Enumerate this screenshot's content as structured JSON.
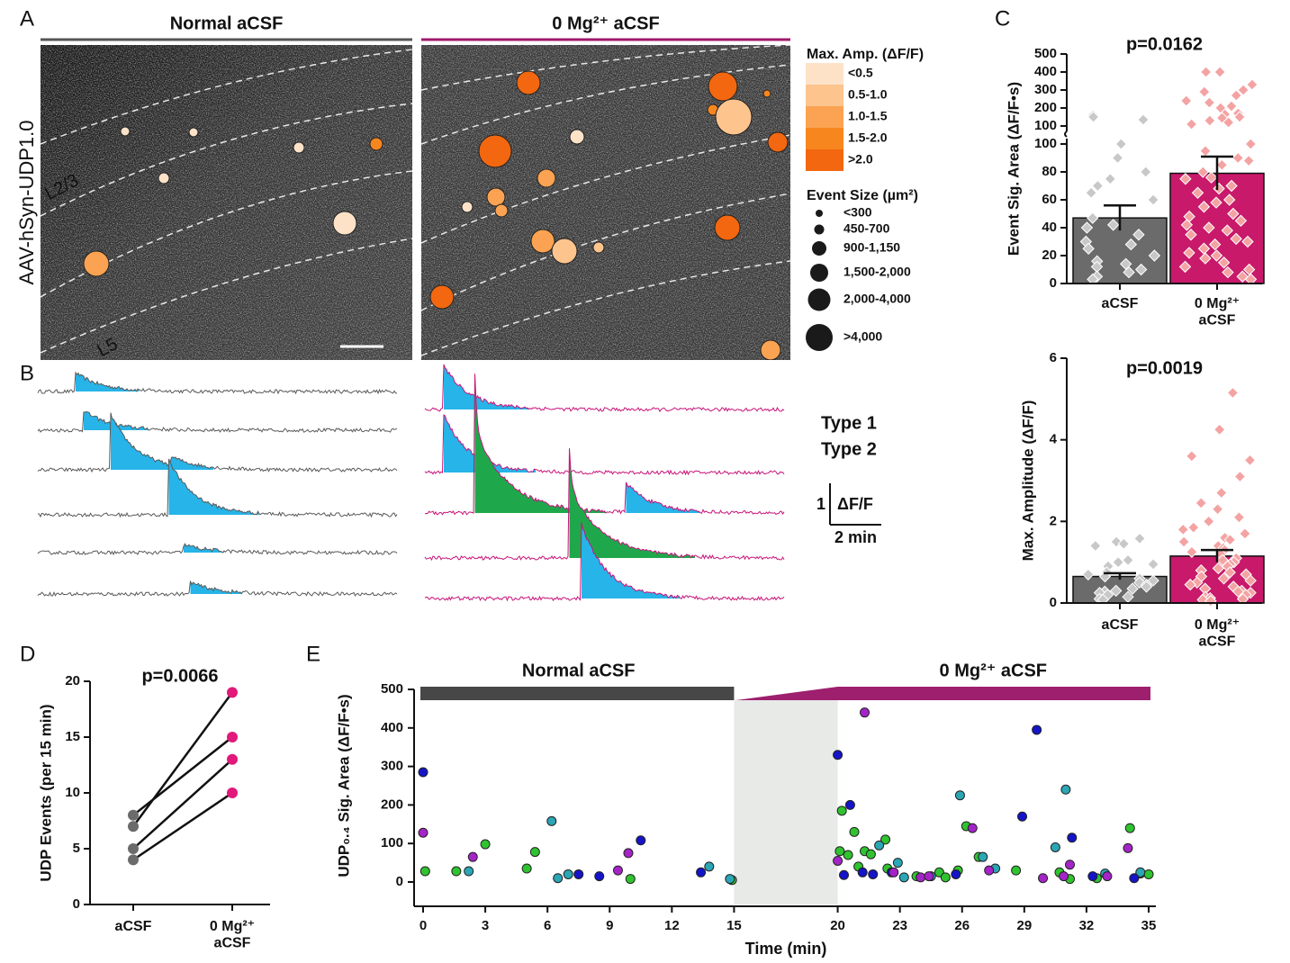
{
  "panel_labels": [
    "A",
    "B",
    "C",
    "D",
    "E"
  ],
  "panel_a": {
    "conditions": [
      {
        "label": "Normal aCSF",
        "color": "#555555"
      },
      {
        "label": "0 Mg²⁺ aCSF",
        "color": "#a0196e"
      }
    ],
    "construct": "AAV-hSyn-UDP1.0",
    "layers": [
      "L2/3",
      "L5"
    ],
    "amp_legend": {
      "title": "Max. Amp. (ΔF/F)",
      "items": [
        {
          "label": "<0.5",
          "color": "#fde2c8"
        },
        {
          "label": "0.5-1.0",
          "color": "#fdc48e"
        },
        {
          "label": "1.0-1.5",
          "color": "#fba352"
        },
        {
          "label": "1.5-2.0",
          "color": "#f8861f"
        },
        {
          "label": ">2.0",
          "color": "#f2670f"
        }
      ]
    },
    "size_legend": {
      "title": "Event Size (µm²)",
      "items": [
        "<300",
        "450-700",
        "900-1,150",
        "1,500-2,000",
        "2,000-4,000",
        ">4,000"
      ]
    }
  },
  "panel_b": {
    "types": [
      {
        "label": "Type 1",
        "color": "#1fa84b"
      },
      {
        "label": "Type 2",
        "color": "#27b4e8"
      }
    ],
    "scale_bar": {
      "y": 1,
      "y_unit": "ΔF/F",
      "x": {
        "value": 2,
        "label": "2 min"
      }
    },
    "conditions": [
      {
        "color": "#5a5a5a",
        "traces": [
          {
            "events": [
              {
                "onset": 1.44,
                "amplitude": 0.47,
                "type": 2
              }
            ]
          },
          {
            "events": [
              {
                "onset": 1.75,
                "amplitude": 0.5,
                "type": 2
              }
            ]
          },
          {
            "events": [
              {
                "onset": 2.8,
                "amplitude": 1.4,
                "type": 2
              },
              {
                "onset": 5.2,
                "amplitude": 0.2,
                "type": 2
              }
            ]
          },
          {
            "events": [
              {
                "onset": 5.1,
                "amplitude": 1.35,
                "type": 2
              }
            ]
          },
          {
            "events": [
              {
                "onset": 5.65,
                "amplitude": 0.2,
                "type": 2
              }
            ]
          },
          {
            "events": [
              {
                "onset": 5.9,
                "amplitude": 0.3,
                "type": 2
              }
            ]
          }
        ]
      },
      {
        "color": "#c8157a",
        "traces": [
          {
            "events": [
              {
                "onset": 0.7,
                "amplitude": 1.1,
                "type": 2
              }
            ]
          },
          {
            "events": [
              {
                "onset": 0.7,
                "amplitude": 1.45,
                "type": 2
              }
            ]
          },
          {
            "events": [
              {
                "onset": 1.93,
                "amplitude": 3.7,
                "type": 1
              },
              {
                "onset": 7.8,
                "amplitude": 0.75,
                "type": 2
              }
            ]
          },
          {
            "events": [
              {
                "onset": 5.6,
                "amplitude": 3.2,
                "type": 1
              }
            ]
          },
          {
            "events": [
              {
                "onset": 6.1,
                "amplitude": 1.8,
                "type": 2
              }
            ]
          }
        ]
      }
    ]
  },
  "chart_data": [
    {
      "type": "bar",
      "title": "p=0.0162",
      "ylabel": "Event Sig. Area (ΔF/F•s)",
      "categories": [
        "aCSF",
        "0 Mg²⁺ aCSF"
      ],
      "values": [
        47,
        79
      ],
      "errors": [
        9,
        12
      ],
      "colors": [
        "#6b6b6b",
        "#c8196b"
      ],
      "point_colors": [
        "#c8c8c8",
        "#f4a3a3"
      ],
      "points": [
        [
          160,
          150,
          135,
          100,
          90,
          80,
          75,
          70,
          65,
          60,
          47,
          42,
          40,
          35,
          30,
          28,
          25,
          20,
          16,
          14,
          12,
          10,
          8,
          5,
          3
        ],
        [
          400,
          400,
          330,
          300,
          290,
          270,
          240,
          230,
          210,
          200,
          170,
          165,
          150,
          145,
          130,
          120,
          110,
          100,
          95,
          90,
          88,
          85,
          80,
          76,
          75,
          70,
          68,
          65,
          60,
          58,
          55,
          50,
          48,
          45,
          42,
          40,
          38,
          35,
          32,
          30,
          28,
          25,
          22,
          20,
          18,
          15,
          12,
          10,
          8,
          5,
          3
        ]
      ],
      "ylim": [
        0,
        500
      ],
      "y_break": 100,
      "yticks": [
        0,
        20,
        40,
        60,
        80,
        100,
        200,
        300,
        400,
        500
      ]
    },
    {
      "type": "bar",
      "title": "p=0.0019",
      "ylabel": "Max. Amplitude (ΔF/F)",
      "categories": [
        "aCSF",
        "0 Mg²⁺ aCSF"
      ],
      "values": [
        0.65,
        1.15
      ],
      "errors": [
        0.08,
        0.15
      ],
      "colors": [
        "#6b6b6b",
        "#c8196b"
      ],
      "point_colors": [
        "#c8c8c8",
        "#f4a3a3"
      ],
      "points": [
        [
          1.58,
          1.5,
          1.45,
          1.4,
          1.05,
          1.0,
          0.95,
          0.9,
          0.75,
          0.7,
          0.65,
          0.6,
          0.55,
          0.5,
          0.45,
          0.4,
          0.35,
          0.3,
          0.28,
          0.25,
          0.2,
          0.15,
          0.1,
          0.08
        ],
        [
          5.15,
          4.25,
          3.6,
          3.5,
          3.1,
          2.7,
          2.45,
          2.3,
          2.1,
          2.0,
          1.85,
          1.8,
          1.7,
          1.6,
          1.55,
          1.5,
          1.4,
          1.35,
          1.3,
          1.25,
          1.2,
          1.1,
          1.05,
          1.0,
          0.95,
          0.9,
          0.85,
          0.8,
          0.75,
          0.7,
          0.65,
          0.6,
          0.55,
          0.5,
          0.45,
          0.4,
          0.35,
          0.3,
          0.28,
          0.25,
          0.2,
          0.15,
          0.12,
          0.1,
          0.08,
          0.05
        ]
      ],
      "ylim": [
        0,
        6
      ],
      "yticks": [
        0,
        2,
        4,
        6
      ]
    },
    {
      "type": "paired",
      "title": "p=0.0066",
      "ylabel": "UDP Events (per 15 min)",
      "categories": [
        "aCSF",
        "0 Mg²⁺ aCSF"
      ],
      "point_colors": [
        "#6b6b6b",
        "#e0197b"
      ],
      "series": [
        {
          "values": [
            8,
            15
          ]
        },
        {
          "values": [
            7,
            19
          ]
        },
        {
          "values": [
            5,
            13
          ]
        },
        {
          "values": [
            4,
            10
          ]
        }
      ],
      "ylim": [
        0,
        20
      ],
      "yticks": [
        0,
        5,
        10,
        15,
        20
      ]
    },
    {
      "type": "scatter",
      "xlabel": "Time (min)",
      "ylabel": "UDP₀.₄ Sig. Area (ΔF/F•s)",
      "phases": [
        {
          "label": "Normal aCSF",
          "color": "#474747",
          "start": 0,
          "end": 15
        },
        {
          "label": "0 Mg²⁺ aCSF",
          "color": "#9e1f6e",
          "start": 15,
          "end": 35
        }
      ],
      "shade": [
        15,
        20
      ],
      "xlim": [
        0,
        35
      ],
      "xticks": [
        0,
        3,
        6,
        9,
        12,
        15,
        20,
        23,
        26,
        29,
        32,
        35
      ],
      "ylim": [
        0,
        500
      ],
      "yticks": [
        0,
        100,
        200,
        300,
        400,
        500
      ],
      "series": [
        {
          "color": "#2fc42f",
          "x": [
            0.1,
            1.6,
            3,
            5,
            5.4,
            10,
            14.9,
            20.1,
            20.2,
            20.5,
            20.8,
            21,
            21.3,
            21.6,
            22.3,
            22.4,
            23.8,
            24.9,
            25.2,
            25.8,
            26.2,
            26.8,
            28.6,
            30.7,
            31.2,
            32.5,
            34.1,
            34.6,
            35
          ],
          "values": [
            28,
            28,
            98,
            35,
            78,
            8,
            5,
            80,
            185,
            70,
            130,
            40,
            80,
            72,
            110,
            35,
            15,
            25,
            12,
            30,
            145,
            65,
            30,
            25,
            8,
            10,
            140,
            22,
            20
          ]
        },
        {
          "color": "#2aa6b5",
          "x": [
            2.2,
            6.2,
            6.5,
            7,
            13.8,
            14.8,
            22,
            22.9,
            23.2,
            24.5,
            25.9,
            27,
            27.6,
            30.5,
            31,
            32.9,
            34.6
          ],
          "values": [
            28,
            158,
            10,
            20,
            40,
            8,
            95,
            50,
            12,
            15,
            225,
            65,
            35,
            90,
            240,
            22,
            25
          ]
        },
        {
          "color": "#1414c8",
          "x": [
            0,
            7.5,
            8.5,
            10.5,
            13.4,
            20,
            20.3,
            20.6,
            21.2,
            21.7,
            22.6,
            25.7,
            28.9,
            29.6,
            31.3,
            32.3,
            34.3
          ],
          "values": [
            285,
            20,
            15,
            108,
            25,
            330,
            18,
            200,
            25,
            20,
            25,
            20,
            170,
            395,
            115,
            15,
            10
          ]
        },
        {
          "color": "#a524c8",
          "x": [
            0,
            2.4,
            9.4,
            9.9,
            20,
            21.3,
            22.7,
            24,
            24.4,
            26.5,
            27.3,
            29.9,
            30.9,
            31.2,
            33,
            34
          ],
          "values": [
            128,
            65,
            30,
            75,
            55,
            440,
            25,
            12,
            15,
            140,
            30,
            10,
            15,
            45,
            15,
            88
          ]
        }
      ]
    }
  ]
}
